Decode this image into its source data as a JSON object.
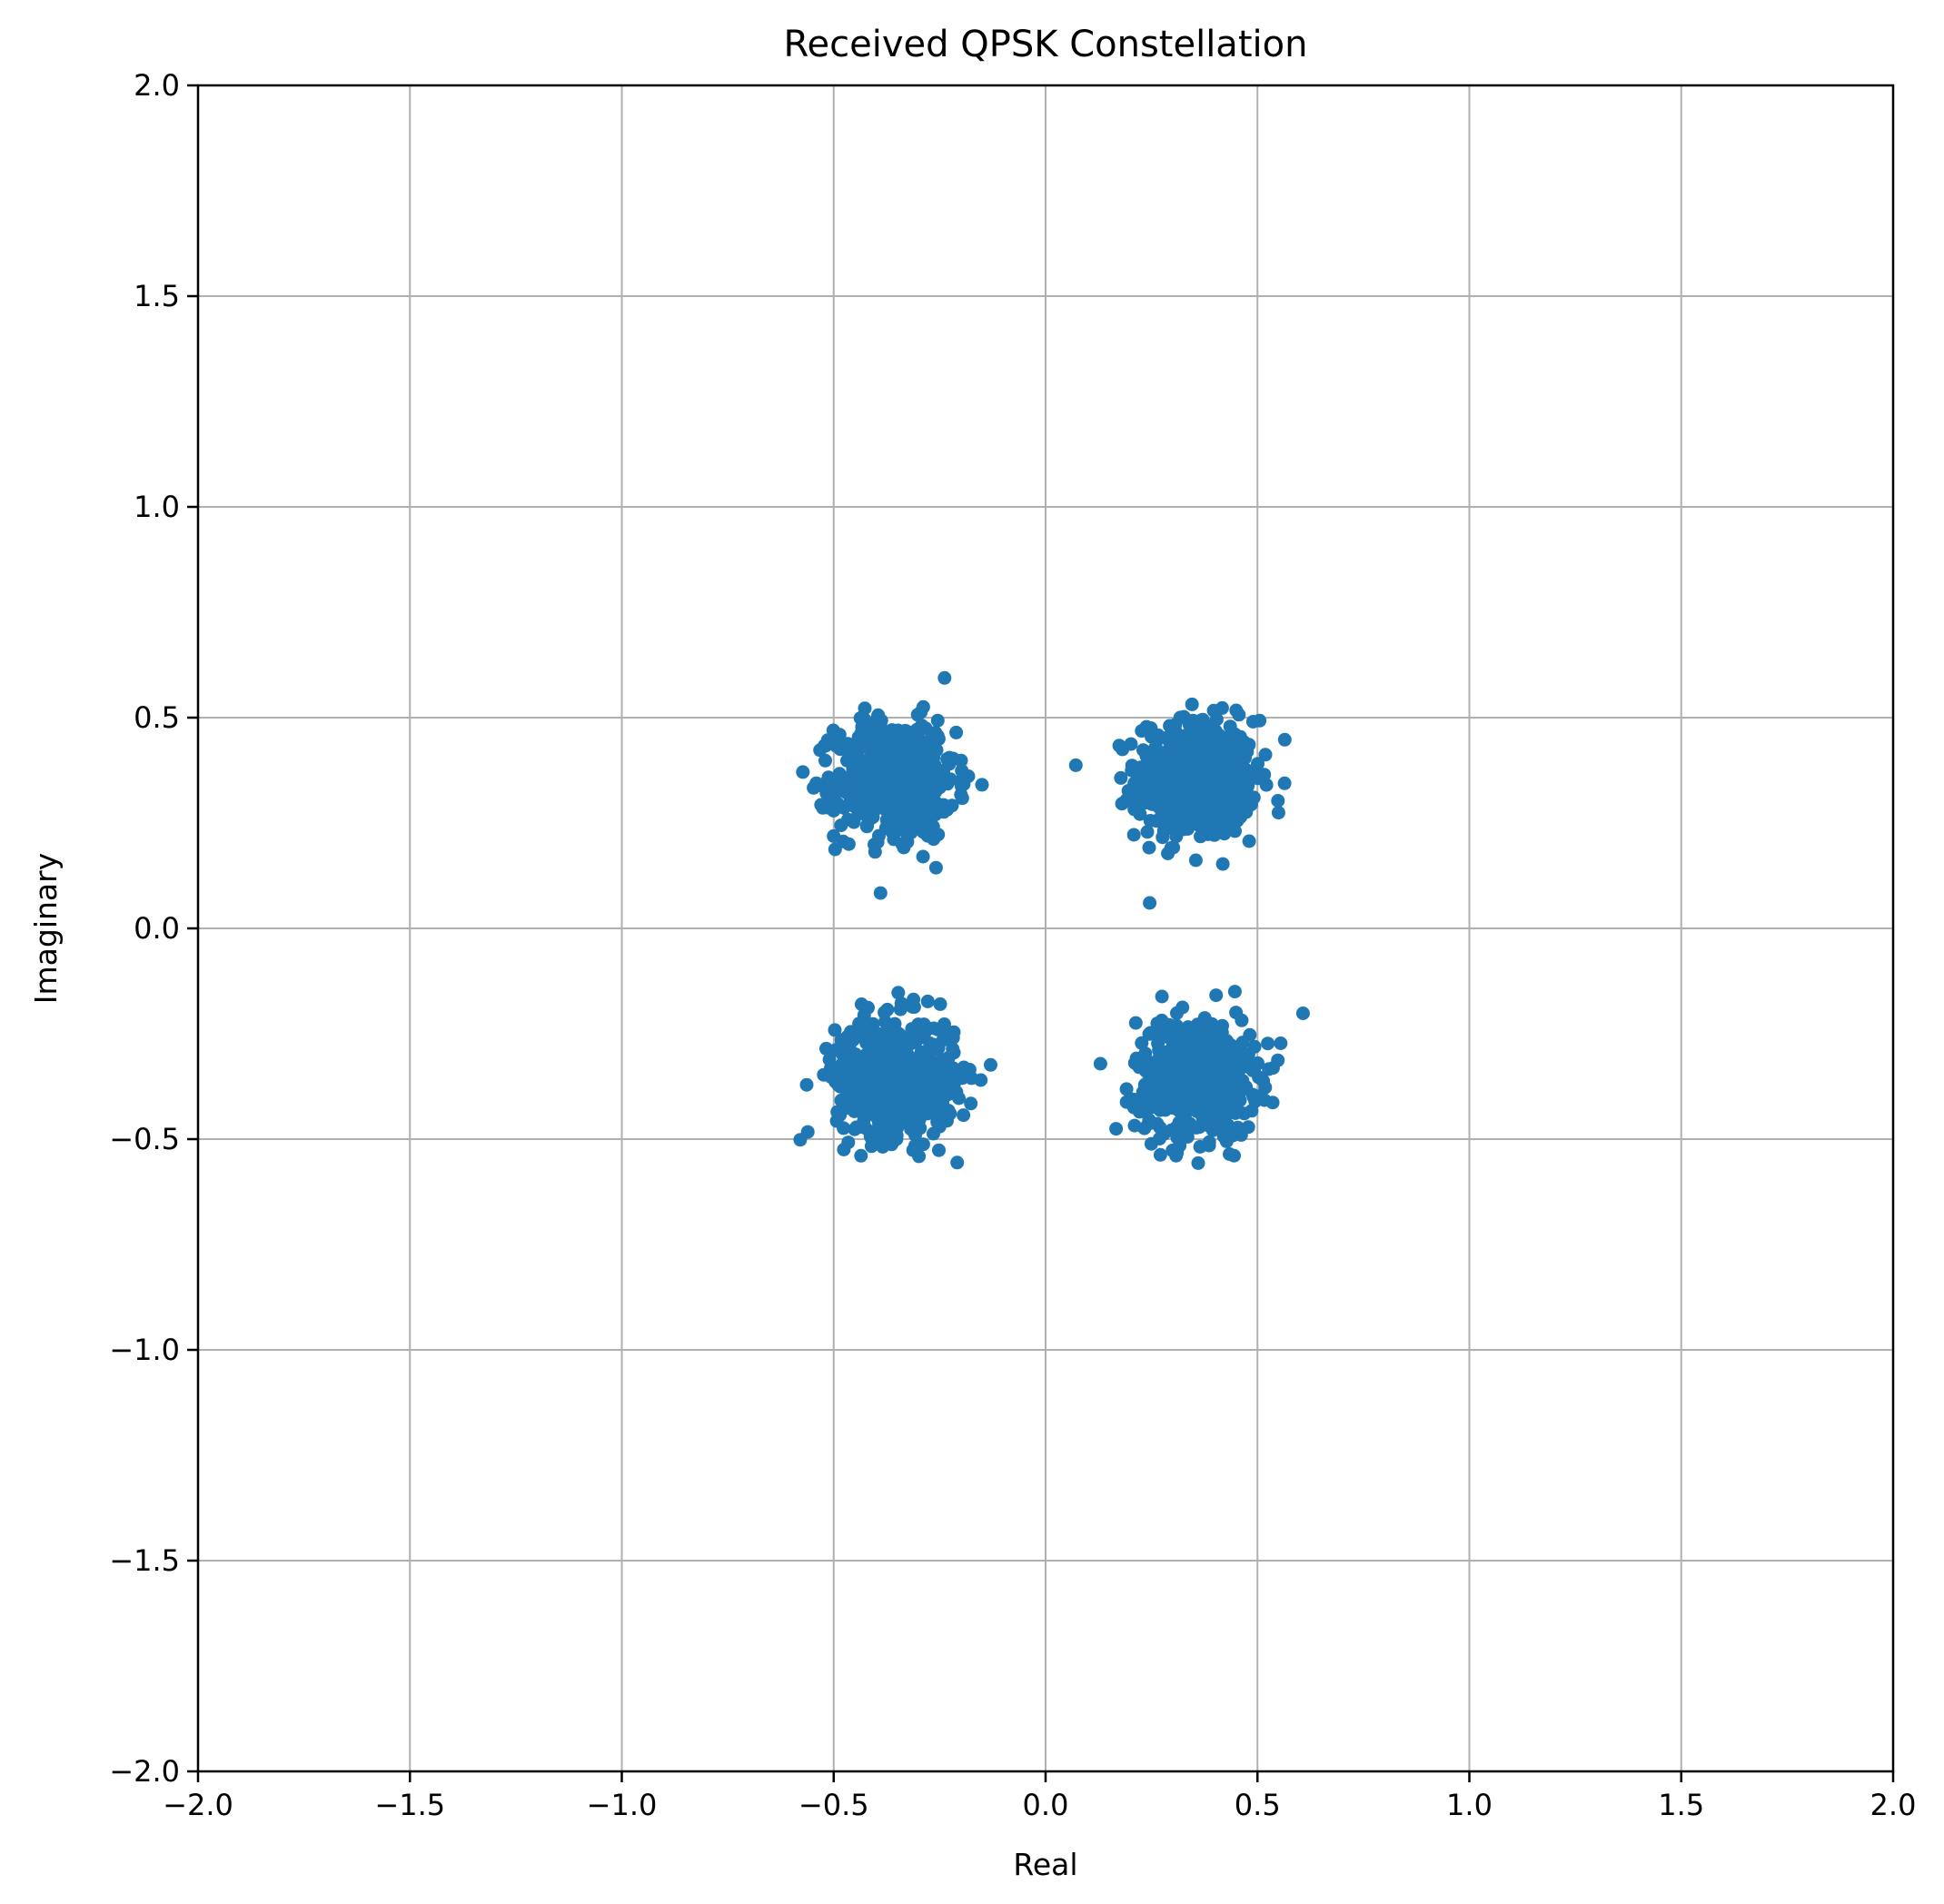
{
  "chart_data": {
    "type": "scatter",
    "title": "Received QPSK Constellation",
    "xlabel": "Real",
    "ylabel": "Imaginary",
    "xlim": [
      -2.0,
      2.0
    ],
    "ylim": [
      -2.0,
      2.0
    ],
    "grid": true,
    "marker_color": "#1f77b4",
    "xticks": [
      -2.0,
      -1.5,
      -1.0,
      -0.5,
      0.0,
      0.5,
      1.0,
      1.5,
      2.0
    ],
    "yticks": [
      -2.0,
      -1.5,
      -1.0,
      -0.5,
      0.0,
      0.5,
      1.0,
      1.5,
      2.0
    ],
    "xtick_labels": [
      "−2.0",
      "−1.5",
      "−1.0",
      "−0.5",
      "0.0",
      "0.5",
      "1.0",
      "1.5",
      "2.0"
    ],
    "ytick_labels": [
      "−2.0",
      "−1.5",
      "−1.0",
      "−0.5",
      "0.0",
      "0.5",
      "1.0",
      "1.5",
      "2.0"
    ],
    "clusters": [
      {
        "center": [
          0.354,
          0.354
        ],
        "spread_std": 0.07
      },
      {
        "center": [
          -0.354,
          0.354
        ],
        "spread_std": 0.07
      },
      {
        "center": [
          -0.354,
          -0.354
        ],
        "spread_std": 0.07
      },
      {
        "center": [
          0.354,
          -0.354
        ],
        "spread_std": 0.07
      }
    ],
    "points_per_cluster": 600
  }
}
